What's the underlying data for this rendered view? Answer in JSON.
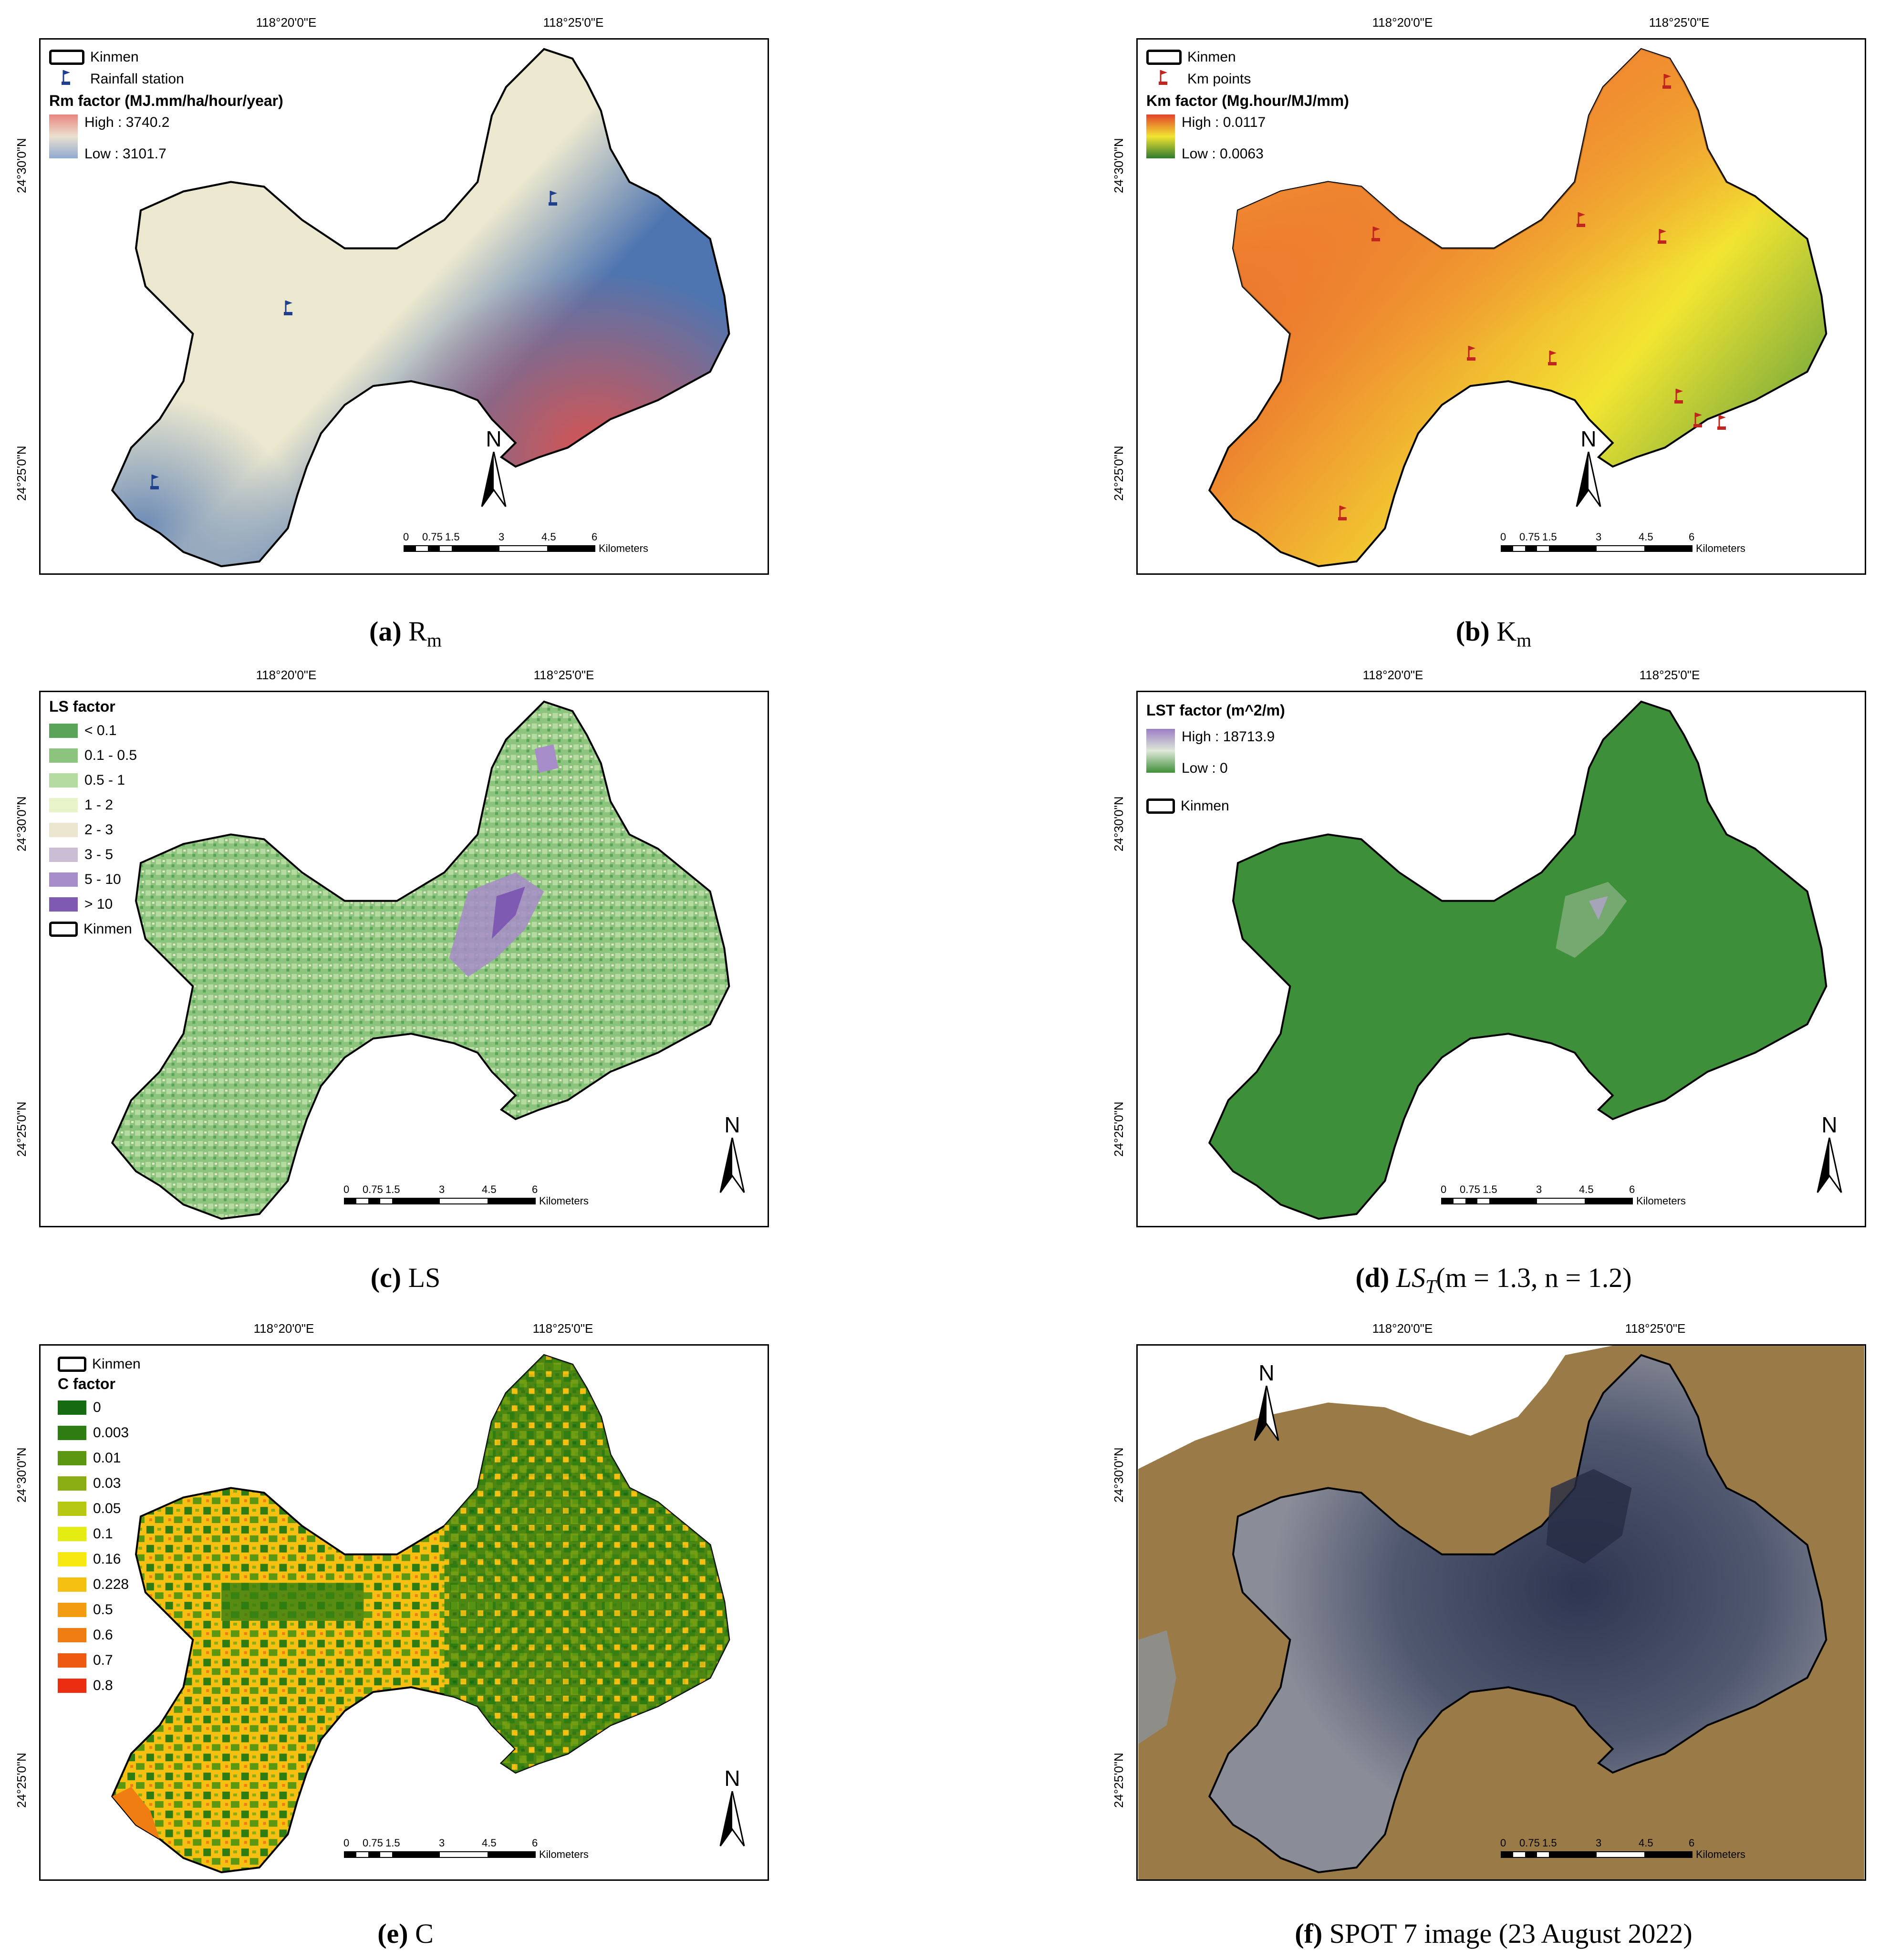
{
  "common": {
    "lon_labels": [
      "118°20'0\"E",
      "118°25'0\"E"
    ],
    "lat_labels": [
      "24°30'0\"N",
      "24°25'0\"N"
    ],
    "north_label": "N",
    "scale_ticks": [
      "0",
      "0.75",
      "1.5",
      "3",
      "4.5",
      "6"
    ],
    "scale_unit": "Kilometers",
    "outline_label": "Kinmen"
  },
  "panels": [
    {
      "id": "a",
      "caption_letter": "(a)",
      "caption_text": "R",
      "caption_sub": "m",
      "legend": {
        "station_label": "Rainfall station",
        "title": "Rm factor (MJ.mm/ha/hour/year)",
        "high": "High : 3740.2",
        "low": "Low : 3101.7"
      },
      "colors": {
        "high": "#d9534f",
        "mid": "#ebe8cf",
        "low": "#4f75b0",
        "marker": "#1f3f8f"
      }
    },
    {
      "id": "b",
      "caption_letter": "(b)",
      "caption_text": "K",
      "caption_sub": "m",
      "legend": {
        "station_label": "Km points",
        "title": "Km factor (Mg.hour/MJ/mm)",
        "high": "High : 0.0117",
        "low": "Low : 0.0063"
      },
      "colors": {
        "high": "#e3432b",
        "mid": "#f2e531",
        "low": "#2f7a2f",
        "marker": "#c0261d"
      }
    },
    {
      "id": "c",
      "caption_letter": "(c)",
      "caption_text": "LS",
      "legend": {
        "title": "LS factor",
        "classes": [
          {
            "label": "< 0.1",
            "color": "#5aa45a"
          },
          {
            "label": "0.1 - 0.5",
            "color": "#8cc47d"
          },
          {
            "label": "0.5 - 1",
            "color": "#b6dba1"
          },
          {
            "label": "1 - 2",
            "color": "#e8f3c9"
          },
          {
            "label": "2 - 3",
            "color": "#ece5cf"
          },
          {
            "label": "3 - 5",
            "color": "#cbbdd6"
          },
          {
            "label": "5 - 10",
            "color": "#a68cc8"
          },
          {
            "label": "> 10",
            "color": "#7e5ab3"
          }
        ]
      }
    },
    {
      "id": "d",
      "caption_letter": "(d)",
      "caption_text": "LS",
      "caption_sub": "T",
      "caption_rest": "(m = 1.3, n = 1.2)",
      "legend": {
        "title": "LST factor (m^2/m)",
        "high": "High : 18713.9",
        "low": "Low : 0"
      },
      "colors": {
        "high": "#9b7ec4",
        "low": "#3e8f3a"
      }
    },
    {
      "id": "e",
      "caption_letter": "(e)",
      "caption_text": "C",
      "legend": {
        "title": "C factor",
        "classes": [
          {
            "label": "0",
            "color": "#156a12"
          },
          {
            "label": "0.003",
            "color": "#2f7d12"
          },
          {
            "label": "0.01",
            "color": "#5c9712"
          },
          {
            "label": "0.03",
            "color": "#89ad12"
          },
          {
            "label": "0.05",
            "color": "#b6c812"
          },
          {
            "label": "0.1",
            "color": "#e4ec12"
          },
          {
            "label": "0.16",
            "color": "#f7e812"
          },
          {
            "label": "0.228",
            "color": "#f5c012"
          },
          {
            "label": "0.5",
            "color": "#f39c12"
          },
          {
            "label": "0.6",
            "color": "#f07d12"
          },
          {
            "label": "0.7",
            "color": "#ee5a12"
          },
          {
            "label": "0.8",
            "color": "#eb2d12"
          }
        ]
      }
    },
    {
      "id": "f",
      "caption_letter": "(f)",
      "caption_text": "SPOT 7 image (23 August 2022)",
      "colors": {
        "sea": "#9a7a46",
        "land": "#6b6e7e",
        "dark": "#2e3550"
      }
    }
  ]
}
